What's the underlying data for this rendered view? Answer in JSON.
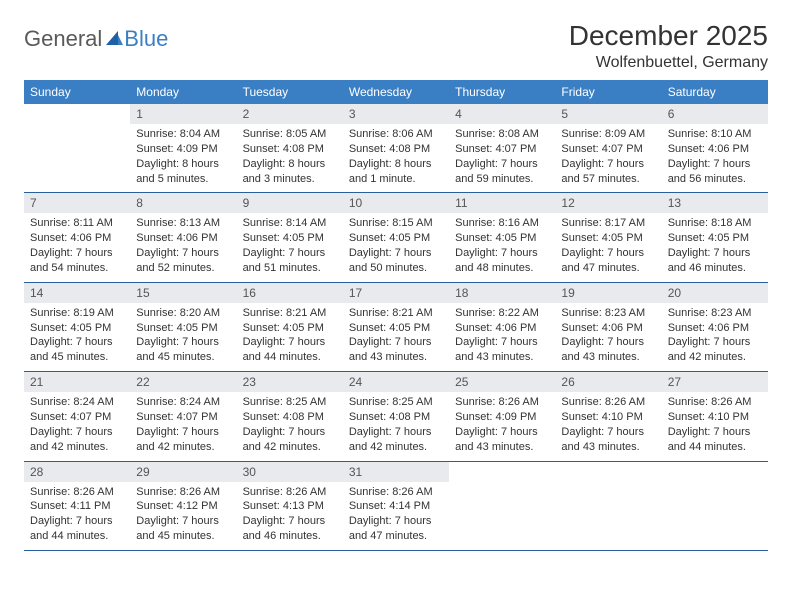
{
  "logo": {
    "general": "General",
    "blue": "Blue"
  },
  "title": "December 2025",
  "location": "Wolfenbuettel, Germany",
  "colors": {
    "header_bg": "#3a7fc4",
    "header_text": "#ffffff",
    "daynum_bg": "#e8eaed",
    "border": "#2a5f9e",
    "body_text": "#333333",
    "logo_gray": "#5a5a5a",
    "logo_blue": "#3a7fc4"
  },
  "weekdays": [
    "Sunday",
    "Monday",
    "Tuesday",
    "Wednesday",
    "Thursday",
    "Friday",
    "Saturday"
  ],
  "days": [
    {
      "n": "1",
      "sunrise": "Sunrise: 8:04 AM",
      "sunset": "Sunset: 4:09 PM",
      "daylight": "Daylight: 8 hours and 5 minutes."
    },
    {
      "n": "2",
      "sunrise": "Sunrise: 8:05 AM",
      "sunset": "Sunset: 4:08 PM",
      "daylight": "Daylight: 8 hours and 3 minutes."
    },
    {
      "n": "3",
      "sunrise": "Sunrise: 8:06 AM",
      "sunset": "Sunset: 4:08 PM",
      "daylight": "Daylight: 8 hours and 1 minute."
    },
    {
      "n": "4",
      "sunrise": "Sunrise: 8:08 AM",
      "sunset": "Sunset: 4:07 PM",
      "daylight": "Daylight: 7 hours and 59 minutes."
    },
    {
      "n": "5",
      "sunrise": "Sunrise: 8:09 AM",
      "sunset": "Sunset: 4:07 PM",
      "daylight": "Daylight: 7 hours and 57 minutes."
    },
    {
      "n": "6",
      "sunrise": "Sunrise: 8:10 AM",
      "sunset": "Sunset: 4:06 PM",
      "daylight": "Daylight: 7 hours and 56 minutes."
    },
    {
      "n": "7",
      "sunrise": "Sunrise: 8:11 AM",
      "sunset": "Sunset: 4:06 PM",
      "daylight": "Daylight: 7 hours and 54 minutes."
    },
    {
      "n": "8",
      "sunrise": "Sunrise: 8:13 AM",
      "sunset": "Sunset: 4:06 PM",
      "daylight": "Daylight: 7 hours and 52 minutes."
    },
    {
      "n": "9",
      "sunrise": "Sunrise: 8:14 AM",
      "sunset": "Sunset: 4:05 PM",
      "daylight": "Daylight: 7 hours and 51 minutes."
    },
    {
      "n": "10",
      "sunrise": "Sunrise: 8:15 AM",
      "sunset": "Sunset: 4:05 PM",
      "daylight": "Daylight: 7 hours and 50 minutes."
    },
    {
      "n": "11",
      "sunrise": "Sunrise: 8:16 AM",
      "sunset": "Sunset: 4:05 PM",
      "daylight": "Daylight: 7 hours and 48 minutes."
    },
    {
      "n": "12",
      "sunrise": "Sunrise: 8:17 AM",
      "sunset": "Sunset: 4:05 PM",
      "daylight": "Daylight: 7 hours and 47 minutes."
    },
    {
      "n": "13",
      "sunrise": "Sunrise: 8:18 AM",
      "sunset": "Sunset: 4:05 PM",
      "daylight": "Daylight: 7 hours and 46 minutes."
    },
    {
      "n": "14",
      "sunrise": "Sunrise: 8:19 AM",
      "sunset": "Sunset: 4:05 PM",
      "daylight": "Daylight: 7 hours and 45 minutes."
    },
    {
      "n": "15",
      "sunrise": "Sunrise: 8:20 AM",
      "sunset": "Sunset: 4:05 PM",
      "daylight": "Daylight: 7 hours and 45 minutes."
    },
    {
      "n": "16",
      "sunrise": "Sunrise: 8:21 AM",
      "sunset": "Sunset: 4:05 PM",
      "daylight": "Daylight: 7 hours and 44 minutes."
    },
    {
      "n": "17",
      "sunrise": "Sunrise: 8:21 AM",
      "sunset": "Sunset: 4:05 PM",
      "daylight": "Daylight: 7 hours and 43 minutes."
    },
    {
      "n": "18",
      "sunrise": "Sunrise: 8:22 AM",
      "sunset": "Sunset: 4:06 PM",
      "daylight": "Daylight: 7 hours and 43 minutes."
    },
    {
      "n": "19",
      "sunrise": "Sunrise: 8:23 AM",
      "sunset": "Sunset: 4:06 PM",
      "daylight": "Daylight: 7 hours and 43 minutes."
    },
    {
      "n": "20",
      "sunrise": "Sunrise: 8:23 AM",
      "sunset": "Sunset: 4:06 PM",
      "daylight": "Daylight: 7 hours and 42 minutes."
    },
    {
      "n": "21",
      "sunrise": "Sunrise: 8:24 AM",
      "sunset": "Sunset: 4:07 PM",
      "daylight": "Daylight: 7 hours and 42 minutes."
    },
    {
      "n": "22",
      "sunrise": "Sunrise: 8:24 AM",
      "sunset": "Sunset: 4:07 PM",
      "daylight": "Daylight: 7 hours and 42 minutes."
    },
    {
      "n": "23",
      "sunrise": "Sunrise: 8:25 AM",
      "sunset": "Sunset: 4:08 PM",
      "daylight": "Daylight: 7 hours and 42 minutes."
    },
    {
      "n": "24",
      "sunrise": "Sunrise: 8:25 AM",
      "sunset": "Sunset: 4:08 PM",
      "daylight": "Daylight: 7 hours and 42 minutes."
    },
    {
      "n": "25",
      "sunrise": "Sunrise: 8:26 AM",
      "sunset": "Sunset: 4:09 PM",
      "daylight": "Daylight: 7 hours and 43 minutes."
    },
    {
      "n": "26",
      "sunrise": "Sunrise: 8:26 AM",
      "sunset": "Sunset: 4:10 PM",
      "daylight": "Daylight: 7 hours and 43 minutes."
    },
    {
      "n": "27",
      "sunrise": "Sunrise: 8:26 AM",
      "sunset": "Sunset: 4:10 PM",
      "daylight": "Daylight: 7 hours and 44 minutes."
    },
    {
      "n": "28",
      "sunrise": "Sunrise: 8:26 AM",
      "sunset": "Sunset: 4:11 PM",
      "daylight": "Daylight: 7 hours and 44 minutes."
    },
    {
      "n": "29",
      "sunrise": "Sunrise: 8:26 AM",
      "sunset": "Sunset: 4:12 PM",
      "daylight": "Daylight: 7 hours and 45 minutes."
    },
    {
      "n": "30",
      "sunrise": "Sunrise: 8:26 AM",
      "sunset": "Sunset: 4:13 PM",
      "daylight": "Daylight: 7 hours and 46 minutes."
    },
    {
      "n": "31",
      "sunrise": "Sunrise: 8:26 AM",
      "sunset": "Sunset: 4:14 PM",
      "daylight": "Daylight: 7 hours and 47 minutes."
    }
  ],
  "start_weekday": 1
}
